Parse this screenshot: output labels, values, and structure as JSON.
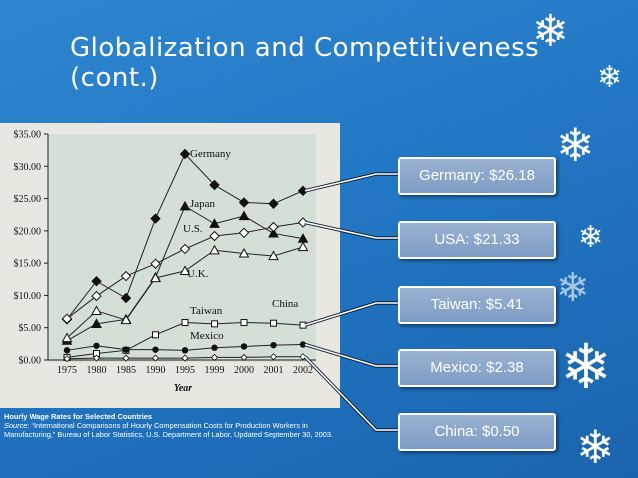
{
  "slide": {
    "title": "Globalization and Competitiveness (cont.)",
    "colors": {
      "background": "#2277c4",
      "callout": "#8fa9cd",
      "text": "#ffffff"
    }
  },
  "callouts": [
    {
      "label": "Germany: $26.18"
    },
    {
      "label": "USA: $21.33"
    },
    {
      "label": "Taiwan: $5.41"
    },
    {
      "label": "Mexico: $2.38"
    },
    {
      "label": "China: $0.50"
    }
  ],
  "caption": {
    "title": "Hourly Wage Rates for Selected Countries",
    "source_label": "Source:",
    "source_text": " “International Comparisons of Hourly Compensation Costs for Production Workers in Manufacturing,” Bureau of Labor Statistics, U.S. Department of Labor, Updated September 30, 2003."
  },
  "chart_data": {
    "type": "line",
    "x": [
      "1975",
      "1980",
      "1985",
      "1990",
      "1995",
      "1999",
      "2000",
      "2001",
      "2002"
    ],
    "xlabel": "Year",
    "ylabel": "",
    "ylim": [
      0,
      35
    ],
    "yticks": [
      "$0.00",
      "$5.00",
      "$10.00",
      "$15.00",
      "$20.00",
      "$25.00",
      "$30.00",
      "$35.00"
    ],
    "legend": "inline labels",
    "grid": false,
    "series": [
      {
        "name": "Germany",
        "marker": "diamond",
        "values": [
          6.3,
          12.2,
          9.6,
          21.9,
          31.9,
          27.1,
          24.4,
          24.2,
          26.2
        ]
      },
      {
        "name": "Japan",
        "marker": "triangle",
        "values": [
          3.0,
          5.6,
          6.3,
          12.8,
          23.8,
          21.1,
          22.3,
          19.6,
          18.8
        ]
      },
      {
        "name": "U.S.",
        "marker": "open-diamond",
        "values": [
          6.4,
          9.9,
          13.0,
          14.9,
          17.2,
          19.2,
          19.7,
          20.6,
          21.3
        ]
      },
      {
        "name": "U.K.",
        "marker": "open-triangle",
        "values": [
          3.4,
          7.6,
          6.2,
          12.7,
          13.8,
          17.0,
          16.5,
          16.1,
          17.5
        ]
      },
      {
        "name": "Taiwan",
        "marker": "open-square",
        "values": [
          0.4,
          1.0,
          1.5,
          3.9,
          5.8,
          5.6,
          5.8,
          5.7,
          5.4
        ]
      },
      {
        "name": "Mexico",
        "marker": "dot",
        "values": [
          1.5,
          2.2,
          1.6,
          1.6,
          1.5,
          1.9,
          2.1,
          2.3,
          2.4
        ]
      },
      {
        "name": "China",
        "marker": "small-diamond",
        "values": [
          0.2,
          0.3,
          0.3,
          0.3,
          0.3,
          0.4,
          0.4,
          0.5,
          0.5
        ]
      }
    ],
    "series_labels": [
      "Germany",
      "Japan",
      "U.S.",
      "U.K.",
      "Taiwan",
      "Mexico",
      "China"
    ]
  }
}
